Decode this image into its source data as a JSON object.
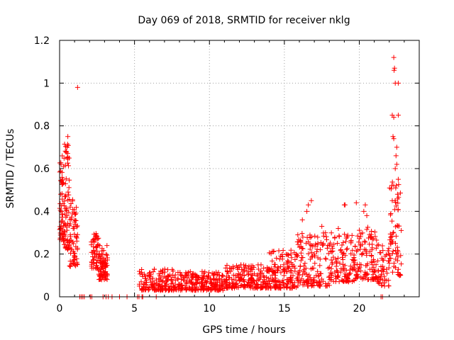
{
  "chart_data": {
    "type": "scatter",
    "title": "Day 069 of 2018, SRMTID for receiver nklg",
    "xlabel": "GPS time / hours",
    "ylabel": "SRMTID / TECUs",
    "xlim": [
      0,
      24
    ],
    "ylim": [
      0,
      1.2
    ],
    "xticks": [
      0,
      5,
      10,
      15,
      20
    ],
    "yticks": [
      0,
      0.2,
      0.4,
      0.6,
      0.8,
      1,
      1.2
    ],
    "xtick_labels": [
      "0",
      "5",
      "10",
      "15",
      "20"
    ],
    "ytick_labels": [
      "0",
      "0.2",
      "0.4",
      "0.6",
      "0.8",
      "1",
      "1.2"
    ],
    "grid": true,
    "marker": "+",
    "marker_color": "#ff0000",
    "series": [
      {
        "name": "SRMTID",
        "segments": [
          {
            "x0": 0.0,
            "x1": 0.25,
            "ymin": 0.26,
            "ymax": 0.66,
            "n": 45
          },
          {
            "x0": 0.25,
            "x1": 0.65,
            "ymin": 0.22,
            "ymax": 0.72,
            "n": 70
          },
          {
            "x0": 0.65,
            "x1": 1.2,
            "ymin": 0.14,
            "ymax": 0.46,
            "n": 70
          },
          {
            "x0": 2.1,
            "x1": 2.6,
            "ymin": 0.13,
            "ymax": 0.3,
            "n": 55
          },
          {
            "x0": 2.6,
            "x1": 3.2,
            "ymin": 0.08,
            "ymax": 0.24,
            "n": 80
          },
          {
            "x0": 5.3,
            "x1": 8.0,
            "ymin": 0.03,
            "ymax": 0.13,
            "n": 170
          },
          {
            "x0": 8.0,
            "x1": 11.0,
            "ymin": 0.03,
            "ymax": 0.12,
            "n": 200
          },
          {
            "x0": 11.0,
            "x1": 14.0,
            "ymin": 0.04,
            "ymax": 0.15,
            "n": 200
          },
          {
            "x0": 14.0,
            "x1": 15.8,
            "ymin": 0.04,
            "ymax": 0.22,
            "n": 140
          },
          {
            "x0": 15.8,
            "x1": 18.0,
            "ymin": 0.05,
            "ymax": 0.3,
            "n": 150
          },
          {
            "x0": 18.0,
            "x1": 20.0,
            "ymin": 0.07,
            "ymax": 0.3,
            "n": 140
          },
          {
            "x0": 20.0,
            "x1": 21.2,
            "ymin": 0.08,
            "ymax": 0.33,
            "n": 90
          },
          {
            "x0": 21.2,
            "x1": 22.0,
            "ymin": 0.05,
            "ymax": 0.25,
            "n": 50
          },
          {
            "x0": 22.0,
            "x1": 22.8,
            "ymin": 0.1,
            "ymax": 0.55,
            "n": 70
          }
        ],
        "points": [
          {
            "x": 1.2,
            "y": 0.98
          },
          {
            "x": 0.55,
            "y": 0.75
          },
          {
            "x": 0.5,
            "y": 0.7
          },
          {
            "x": 0.45,
            "y": 0.68
          },
          {
            "x": 0.1,
            "y": 0.62
          },
          {
            "x": 16.8,
            "y": 0.45
          },
          {
            "x": 16.6,
            "y": 0.43
          },
          {
            "x": 16.5,
            "y": 0.4
          },
          {
            "x": 19.0,
            "y": 0.43
          },
          {
            "x": 19.05,
            "y": 0.43
          },
          {
            "x": 19.8,
            "y": 0.44
          },
          {
            "x": 20.4,
            "y": 0.43
          },
          {
            "x": 20.3,
            "y": 0.4
          },
          {
            "x": 20.5,
            "y": 0.38
          },
          {
            "x": 16.2,
            "y": 0.36
          },
          {
            "x": 17.5,
            "y": 0.33
          },
          {
            "x": 18.6,
            "y": 0.32
          },
          {
            "x": 22.3,
            "y": 1.12
          },
          {
            "x": 22.35,
            "y": 1.07
          },
          {
            "x": 22.32,
            "y": 1.06
          },
          {
            "x": 22.4,
            "y": 1.0
          },
          {
            "x": 22.6,
            "y": 1.0
          },
          {
            "x": 22.2,
            "y": 0.85
          },
          {
            "x": 22.3,
            "y": 0.84
          },
          {
            "x": 22.6,
            "y": 0.85
          },
          {
            "x": 22.25,
            "y": 0.75
          },
          {
            "x": 22.3,
            "y": 0.74
          },
          {
            "x": 22.5,
            "y": 0.7
          },
          {
            "x": 22.45,
            "y": 0.66
          },
          {
            "x": 22.5,
            "y": 0.62
          },
          {
            "x": 22.4,
            "y": 0.6
          },
          {
            "x": 22.6,
            "y": 0.55
          },
          {
            "x": 22.3,
            "y": 0.52
          },
          {
            "x": 22.55,
            "y": 0.48
          },
          {
            "x": 22.2,
            "y": 0.45
          },
          {
            "x": 22.7,
            "y": 0.1
          }
        ],
        "zeros": [
          1.35,
          1.45,
          1.55,
          1.65,
          2.05,
          2.15,
          2.9,
          3.1,
          3.25,
          3.5,
          4.0,
          4.5,
          5.2,
          5.3,
          5.5,
          5.55,
          6.45,
          21.45,
          21.55
        ]
      }
    ]
  }
}
